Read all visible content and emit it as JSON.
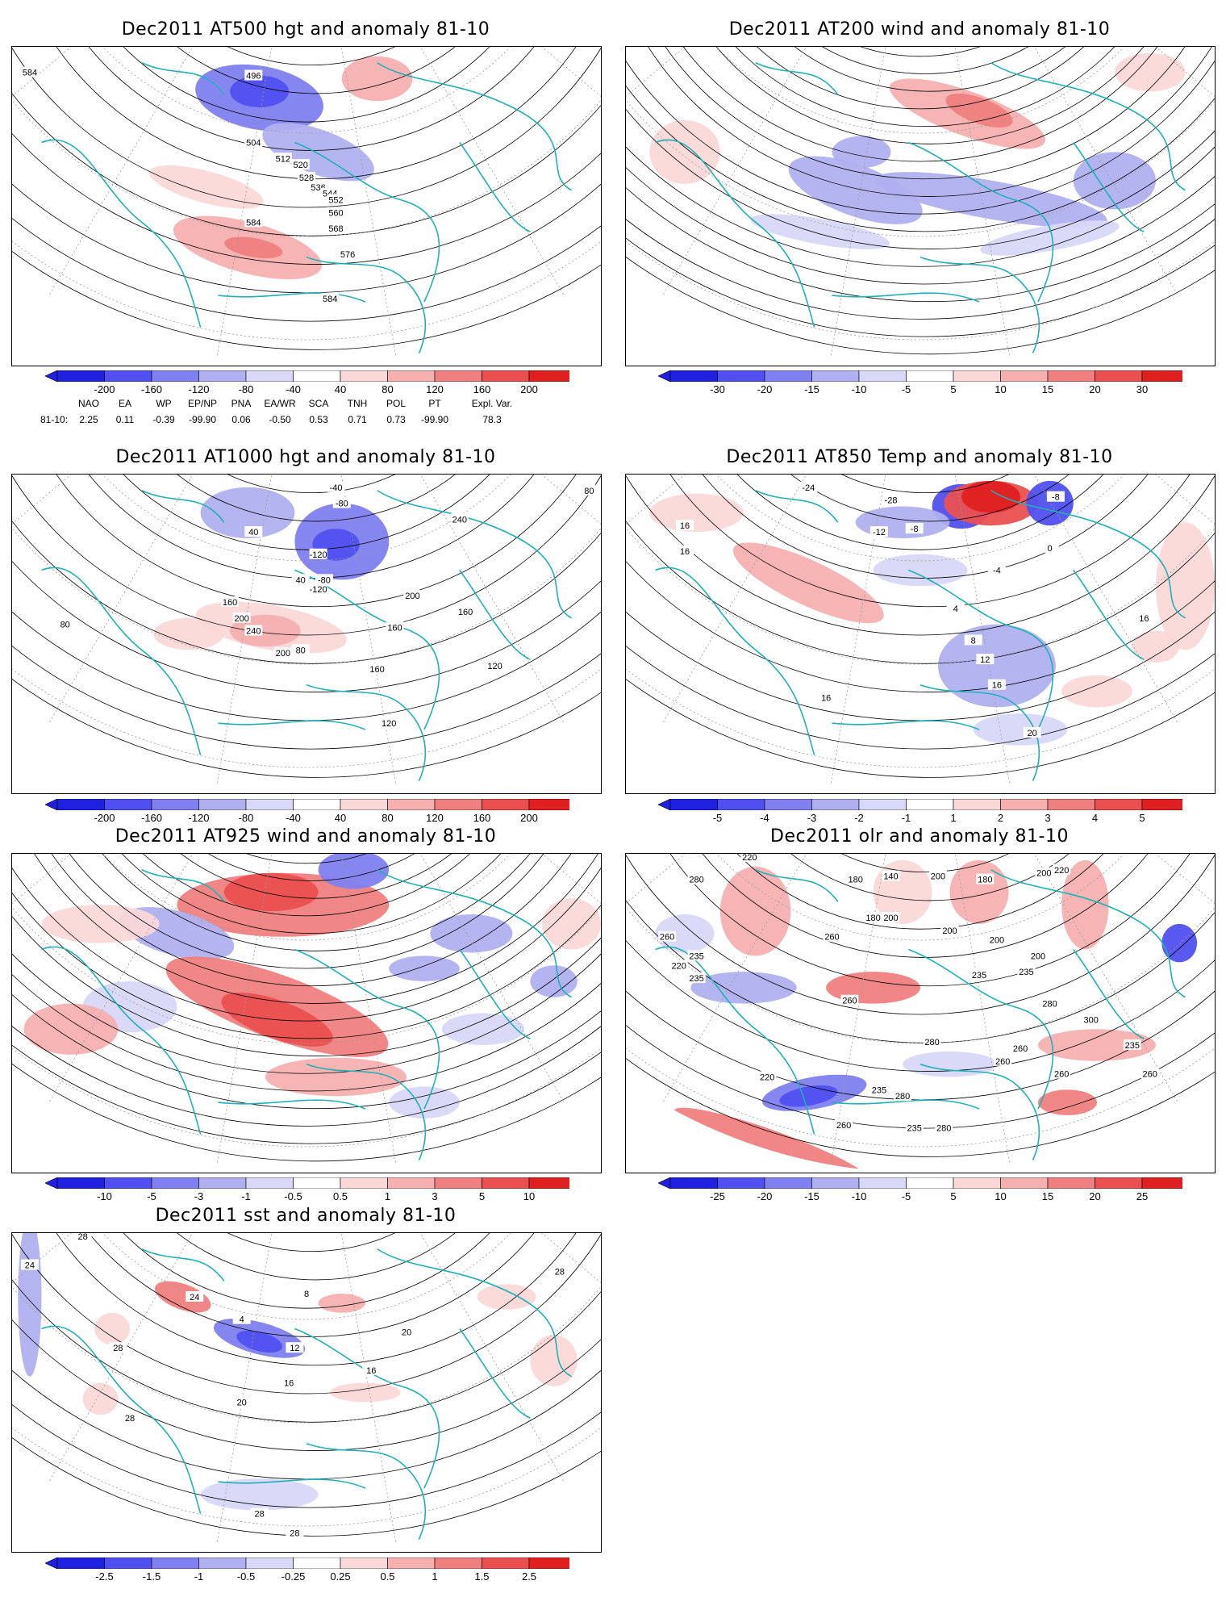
{
  "panels": [
    {
      "id": "p500",
      "title": "Dec2011 AT500 hgt and anomaly 81-10",
      "colorbar": [
        "-200",
        "-160",
        "-120",
        "-80",
        "-40",
        "40",
        "80",
        "120",
        "160",
        "200"
      ],
      "contour_labels": [
        "584",
        "496",
        "504",
        "512",
        "520",
        "528",
        "536",
        "544",
        "552",
        "560",
        "568",
        "576",
        "584",
        "584"
      ]
    },
    {
      "id": "p200",
      "title": "Dec2011 AT200 wind and anomaly 81-10",
      "colorbar": [
        "-30",
        "-20",
        "-15",
        "-10",
        "-5",
        "5",
        "10",
        "15",
        "20",
        "30"
      ],
      "contour_labels": []
    },
    {
      "id": "p1000",
      "title": "Dec2011 AT1000 hgt and anomaly 81-10",
      "colorbar": [
        "-200",
        "-160",
        "-120",
        "-80",
        "-40",
        "40",
        "80",
        "120",
        "160",
        "200"
      ],
      "contour_labels": [
        "80",
        "-40",
        "-80",
        "40",
        "-120",
        "40",
        "-80",
        "-120",
        "240",
        "200",
        "160",
        "200",
        "240",
        "160",
        "160",
        "200",
        "160",
        "120",
        "120",
        "80",
        "80"
      ]
    },
    {
      "id": "p850",
      "title": "Dec2011 AT850 Temp and anomaly 81-10",
      "colorbar": [
        "-5",
        "-4",
        "-3",
        "-2",
        "-1",
        "1",
        "2",
        "3",
        "4",
        "5"
      ],
      "contour_labels": [
        "16",
        "16",
        "-24",
        "-28",
        "-12",
        "-8",
        "-8",
        "-4",
        "0",
        "4",
        "8",
        "12",
        "16",
        "20",
        "16",
        "16"
      ]
    },
    {
      "id": "p925",
      "title": "Dec2011 AT925 wind and anomaly 81-10",
      "colorbar": [
        "-10",
        "-5",
        "-3",
        "-1",
        "-0.5",
        "0.5",
        "1",
        "3",
        "5",
        "10"
      ],
      "contour_labels": []
    },
    {
      "id": "polr",
      "title": "Dec2011 olr and anomaly 81-10",
      "colorbar": [
        "-25",
        "-20",
        "-15",
        "-10",
        "-5",
        "5",
        "10",
        "15",
        "20",
        "25"
      ],
      "contour_labels": [
        "220",
        "280",
        "180",
        "140",
        "200",
        "180",
        "200",
        "180",
        "220",
        "260",
        "235",
        "220",
        "235",
        "260",
        "200",
        "200",
        "200",
        "200",
        "235",
        "235",
        "260",
        "280",
        "300",
        "260",
        "260",
        "280",
        "260",
        "280",
        "235",
        "235",
        "260",
        "220",
        "280",
        "235",
        "260"
      ]
    },
    {
      "id": "psst",
      "title": "Dec2011 sst and anomaly 81-10",
      "colorbar": [
        "-2.5",
        "-1.5",
        "-1",
        "-0.5",
        "-0.25",
        "0.25",
        "0.5",
        "1",
        "1.5",
        "2.5"
      ],
      "contour_labels": [
        "28",
        "24",
        "28",
        "28",
        "24",
        "4",
        "8",
        "12",
        "16",
        "16",
        "20",
        "20",
        "28",
        "28",
        "28"
      ]
    }
  ],
  "indices": {
    "headers": [
      "NAO",
      "EA",
      "WP",
      "EP/NP",
      "PNA",
      "EA/WR",
      "SCA",
      "TNH",
      "POL",
      "PT",
      "Expl. Var."
    ],
    "row_label": "81-10:",
    "values": [
      "2.25",
      "0.11",
      "-0.39",
      "-99.90",
      "0.06",
      "-0.50",
      "0.53",
      "0.71",
      "0.73",
      "-99.90",
      "78.3"
    ]
  },
  "colors": {
    "negative": [
      "#2020e0",
      "#5050f0",
      "#8080f0",
      "#b0b0f0",
      "#d8d8f8"
    ],
    "positive": [
      "#fbd8d8",
      "#f6b0b0",
      "#f08080",
      "#ea5050",
      "#e02020"
    ],
    "coast": "#20b0b8",
    "contour": "#000000",
    "grid": "#9a9a9a"
  }
}
